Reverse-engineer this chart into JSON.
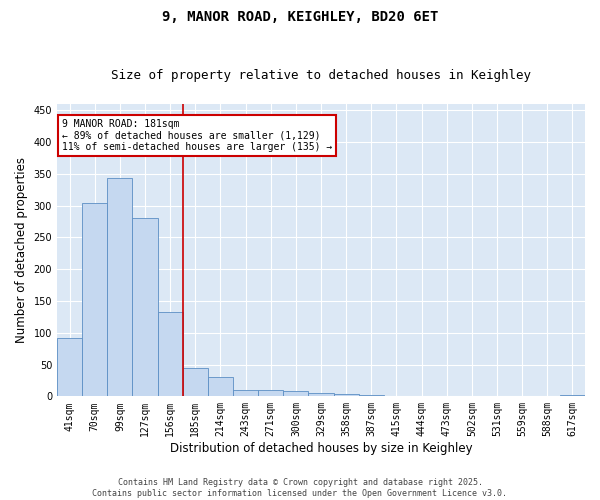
{
  "title1": "9, MANOR ROAD, KEIGHLEY, BD20 6ET",
  "title2": "Size of property relative to detached houses in Keighley",
  "xlabel": "Distribution of detached houses by size in Keighley",
  "ylabel": "Number of detached properties",
  "categories": [
    "41sqm",
    "70sqm",
    "99sqm",
    "127sqm",
    "156sqm",
    "185sqm",
    "214sqm",
    "243sqm",
    "271sqm",
    "300sqm",
    "329sqm",
    "358sqm",
    "387sqm",
    "415sqm",
    "444sqm",
    "473sqm",
    "502sqm",
    "531sqm",
    "559sqm",
    "588sqm",
    "617sqm"
  ],
  "values": [
    92,
    305,
    343,
    280,
    132,
    45,
    30,
    10,
    10,
    8,
    5,
    4,
    2,
    1,
    1,
    0,
    0,
    0,
    0,
    0,
    2
  ],
  "bar_color": "#c5d8f0",
  "bar_edge_color": "#5b8ec4",
  "highlight_index": 5,
  "vline_color": "#cc0000",
  "annotation_text": "9 MANOR ROAD: 181sqm\n← 89% of detached houses are smaller (1,129)\n11% of semi-detached houses are larger (135) →",
  "annotation_box_color": "#cc0000",
  "ylim": [
    0,
    460
  ],
  "yticks": [
    0,
    50,
    100,
    150,
    200,
    250,
    300,
    350,
    400,
    450
  ],
  "bg_color": "#dce8f5",
  "fig_color": "#ffffff",
  "footer1": "Contains HM Land Registry data © Crown copyright and database right 2025.",
  "footer2": "Contains public sector information licensed under the Open Government Licence v3.0.",
  "title_fontsize": 10,
  "subtitle_fontsize": 9,
  "tick_fontsize": 7,
  "label_fontsize": 8.5,
  "footer_fontsize": 6,
  "annot_fontsize": 7
}
